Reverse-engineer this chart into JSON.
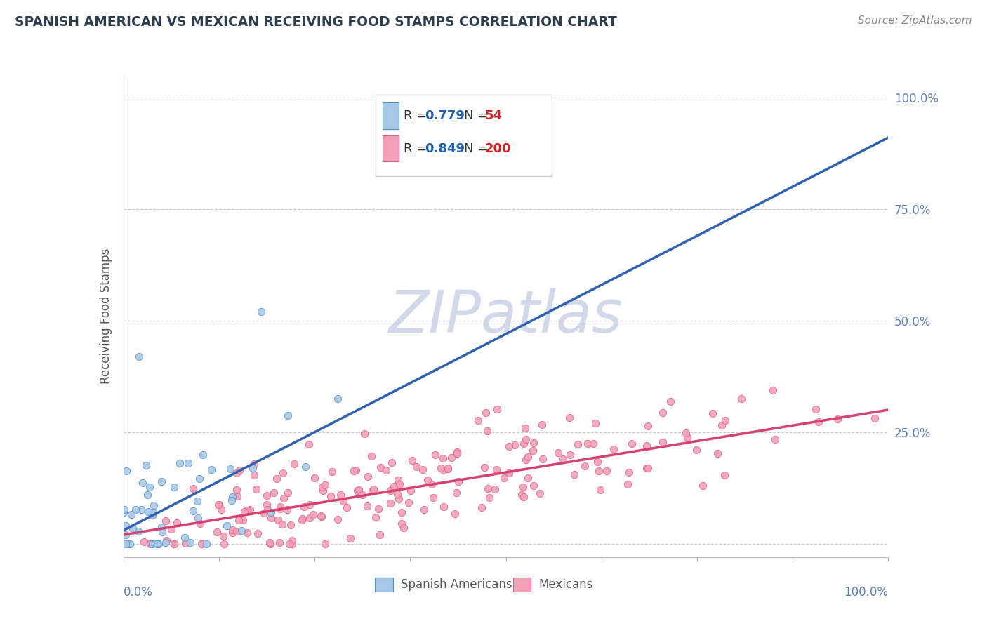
{
  "title": "SPANISH AMERICAN VS MEXICAN RECEIVING FOOD STAMPS CORRELATION CHART",
  "source": "Source: ZipAtlas.com",
  "ylabel": "Receiving Food Stamps",
  "blue_R": 0.779,
  "blue_N": 54,
  "pink_R": 0.849,
  "pink_N": 200,
  "blue_fill_color": "#a8c8e8",
  "pink_fill_color": "#f4a0b8",
  "blue_edge_color": "#5090c8",
  "pink_edge_color": "#e06080",
  "blue_line_color": "#3060b0",
  "pink_line_color": "#d84070",
  "blue_line_slope": 0.88,
  "blue_line_intercept": 0.03,
  "pink_line_slope": 0.28,
  "pink_line_intercept": 0.02,
  "axis_color": "#5b7fba",
  "grid_color": "#c8c8d8",
  "title_color": "#2c3e50",
  "source_color": "#888888",
  "text_color": "#333333",
  "background_color": "#ffffff",
  "watermark_color": "#d0d8ea",
  "legend_R_color": "#2060b0",
  "legend_N_color": "#cc2020"
}
